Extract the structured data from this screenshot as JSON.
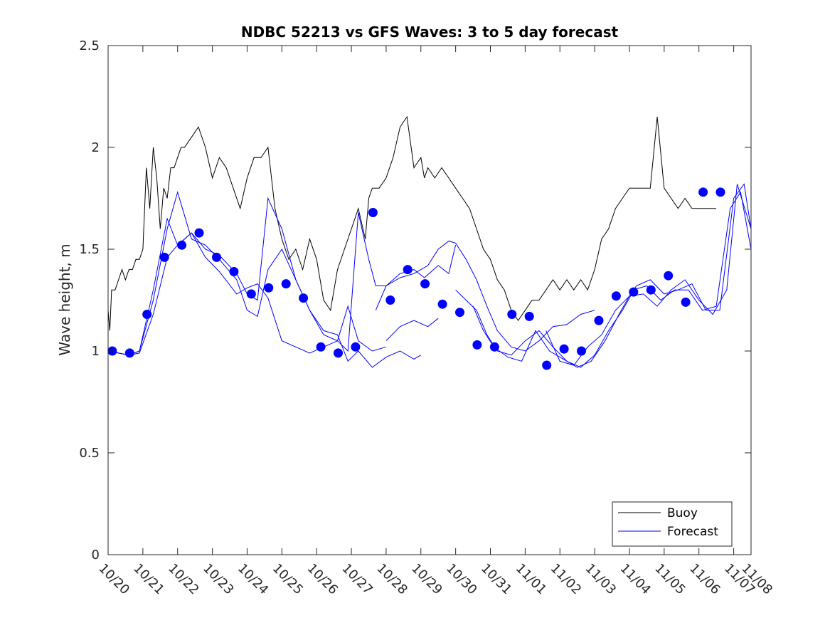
{
  "chart_data": {
    "type": "line",
    "title": "NDBC 52213 vs GFS Waves: 3 to 5 day forecast",
    "xlabel": "",
    "ylabel": "Wave height, m",
    "x_tick_labels": [
      "10/20",
      "10/21",
      "10/22",
      "10/23",
      "10/24",
      "10/25",
      "10/26",
      "10/27",
      "10/28",
      "10/29",
      "10/30",
      "10/31",
      "11/01",
      "11/02",
      "11/03",
      "11/04",
      "11/05",
      "11/06",
      "11/07",
      "11/08"
    ],
    "y_tick_labels": [
      "0",
      "0.5",
      "1",
      "1.5",
      "2",
      "2.5"
    ],
    "xlim": [
      0,
      18.5
    ],
    "ylim": [
      0,
      2.5
    ],
    "legend": {
      "location": "bottom-right",
      "entries": [
        "Buoy",
        "Forecast"
      ]
    },
    "colors": {
      "buoy": "#000000",
      "forecast": "#0000ff"
    },
    "series": [
      {
        "name": "Buoy",
        "x_days": [
          0,
          0.05,
          0.1,
          0.2,
          0.3,
          0.4,
          0.5,
          0.6,
          0.7,
          0.8,
          0.9,
          1.0,
          1.1,
          1.2,
          1.3,
          1.4,
          1.5,
          1.6,
          1.7,
          1.8,
          1.9,
          2.0,
          2.1,
          2.2,
          2.4,
          2.6,
          2.8,
          3.0,
          3.2,
          3.4,
          3.6,
          3.8,
          4.0,
          4.2,
          4.4,
          4.6,
          4.8,
          5.0,
          5.2,
          5.4,
          5.6,
          5.8,
          6.0,
          6.2,
          6.4,
          6.6,
          6.8,
          7.0,
          7.2,
          7.4,
          7.5,
          7.6,
          7.8,
          8.0,
          8.2,
          8.4,
          8.6,
          8.8,
          9.0,
          9.1,
          9.2,
          9.4,
          9.6,
          9.8,
          10.0,
          10.2,
          10.4,
          10.6,
          10.8,
          11.0,
          11.2,
          11.4,
          11.6,
          11.8,
          12.0,
          12.2,
          12.4,
          12.6,
          12.8,
          13.0,
          13.2,
          13.4,
          13.6,
          13.8,
          14.0,
          14.2,
          14.4,
          14.6,
          14.8,
          15.0,
          15.2,
          15.4,
          15.6,
          15.8,
          16.0,
          16.2,
          16.4,
          16.6,
          16.8,
          17.0,
          17.1,
          17.2,
          17.3,
          17.5
        ],
        "values": [
          1.2,
          1.1,
          1.3,
          1.3,
          1.35,
          1.4,
          1.35,
          1.4,
          1.4,
          1.45,
          1.45,
          1.5,
          1.9,
          1.7,
          2.0,
          1.85,
          1.6,
          1.8,
          1.75,
          1.9,
          1.9,
          1.95,
          2.0,
          2.0,
          2.05,
          2.1,
          2.0,
          1.85,
          1.95,
          1.9,
          1.8,
          1.7,
          1.85,
          1.95,
          1.95,
          2.0,
          1.7,
          1.55,
          1.45,
          1.5,
          1.4,
          1.55,
          1.45,
          1.25,
          1.2,
          1.4,
          1.5,
          1.6,
          1.7,
          1.55,
          1.75,
          1.8,
          1.8,
          1.85,
          1.95,
          2.1,
          2.15,
          1.9,
          1.95,
          1.85,
          1.9,
          1.85,
          1.9,
          1.85,
          1.8,
          1.75,
          1.7,
          1.6,
          1.5,
          1.45,
          1.35,
          1.3,
          1.2,
          1.15,
          1.2,
          1.25,
          1.25,
          1.3,
          1.35,
          1.3,
          1.35,
          1.3,
          1.35,
          1.3,
          1.4,
          1.55,
          1.6,
          1.7,
          1.75,
          1.8,
          1.8,
          1.8,
          1.8,
          2.15,
          1.8,
          1.75,
          1.7,
          1.75,
          1.7,
          1.7,
          1.7,
          1.7,
          1.7,
          1.7
        ]
      },
      {
        "name": "Forecast",
        "runs": [
          {
            "x_days": [
              0.0,
              0.6,
              0.9,
              1.3,
              1.7,
              2.0,
              2.4,
              2.8,
              3.2,
              3.7,
              4.0,
              4.3,
              4.6,
              5.0,
              5.4,
              5.8,
              6.2,
              6.6,
              6.9,
              7.2,
              7.6,
              8.0,
              8.4,
              8.8,
              9.0
            ],
            "values": [
              1.0,
              0.98,
              1.0,
              1.3,
              1.65,
              1.52,
              1.58,
              1.5,
              1.47,
              1.38,
              1.28,
              1.25,
              1.75,
              1.6,
              1.35,
              1.2,
              1.1,
              1.08,
              0.95,
              1.0,
              0.92,
              0.97,
              1.0,
              0.96,
              0.98
            ]
          },
          {
            "x_days": [
              0.0,
              0.6,
              0.9,
              1.3,
              1.7,
              2.0,
              2.4,
              2.8,
              3.2,
              3.7,
              4.0,
              4.3,
              4.6,
              5.0,
              5.4,
              5.8,
              6.2,
              6.6,
              6.9,
              7.2,
              7.6,
              8.0
            ],
            "values": [
              1.0,
              0.98,
              1.0,
              1.25,
              1.6,
              1.78,
              1.55,
              1.52,
              1.45,
              1.35,
              1.2,
              1.17,
              1.4,
              1.5,
              1.35,
              1.2,
              1.08,
              1.05,
              1.22,
              1.05,
              1.0,
              1.02
            ]
          },
          {
            "x_days": [
              0.0,
              0.6,
              0.9,
              1.3,
              1.7,
              2.0,
              2.4,
              2.8,
              3.2,
              3.7,
              4.0,
              4.3,
              4.6,
              5.0,
              5.4,
              5.8,
              6.2,
              6.6,
              6.9,
              7.2,
              7.5,
              7.7,
              8.0,
              8.4,
              8.8,
              9.1,
              9.5,
              9.8,
              10.0
            ],
            "values": [
              1.0,
              0.98,
              0.99,
              1.18,
              1.46,
              1.52,
              1.58,
              1.46,
              1.39,
              1.28,
              1.31,
              1.33,
              1.26,
              1.05,
              1.02,
              0.99,
              1.02,
              1.05,
              1.0,
              1.68,
              1.45,
              1.32,
              1.32,
              1.38,
              1.4,
              1.36,
              1.42,
              1.38,
              1.52
            ]
          },
          {
            "x_days": [
              7.7,
              8.0,
              8.4,
              8.8,
              9.2,
              9.5,
              9.8,
              10.0,
              10.3,
              10.6,
              10.9,
              11.2,
              11.6,
              12.0,
              12.4,
              12.8,
              13.2,
              13.6,
              14.0
            ],
            "values": [
              1.2,
              1.32,
              1.36,
              1.38,
              1.42,
              1.5,
              1.54,
              1.53,
              1.45,
              1.35,
              1.22,
              1.1,
              1.02,
              1.0,
              1.05,
              1.12,
              1.13,
              1.18,
              1.2
            ]
          },
          {
            "x_days": [
              8.0,
              8.4,
              8.8,
              9.2,
              9.5
            ],
            "values": [
              1.05,
              1.12,
              1.15,
              1.12,
              1.16
            ]
          },
          {
            "x_days": [
              10.0,
              10.3,
              10.6,
              10.9,
              11.2,
              11.6,
              12.0,
              12.4,
              12.8,
              13.2,
              13.6,
              14.0,
              14.4,
              14.8,
              15.2,
              15.6,
              16.0,
              16.4,
              16.8,
              17.2,
              17.6,
              18.0,
              18.3,
              18.5
            ],
            "values": [
              1.3,
              1.25,
              1.2,
              1.08,
              1.0,
              0.98,
              1.05,
              1.1,
              1.02,
              0.95,
              0.92,
              0.98,
              1.1,
              1.2,
              1.32,
              1.35,
              1.28,
              1.3,
              1.33,
              1.2,
              1.2,
              1.75,
              1.82,
              1.6
            ]
          },
          {
            "x_days": [
              10.5,
              10.8,
              11.1,
              11.5,
              11.9,
              12.3,
              12.7,
              13.1,
              13.5,
              13.9,
              14.3,
              14.7,
              15.1,
              15.5,
              15.9,
              16.3,
              16.7,
              17.1,
              17.5,
              17.9,
              18.2,
              18.5
            ],
            "values": [
              1.22,
              1.1,
              1.02,
              0.97,
              0.95,
              1.1,
              1.0,
              0.96,
              0.92,
              0.95,
              1.05,
              1.18,
              1.3,
              1.32,
              1.25,
              1.3,
              1.3,
              1.2,
              1.22,
              1.7,
              1.78,
              1.5
            ]
          },
          {
            "x_days": [
              12.6,
              13.0,
              13.4,
              13.8,
              14.2,
              14.6,
              15.0,
              15.4,
              15.8,
              16.2,
              16.6,
              17.0,
              17.4,
              17.8,
              18.1,
              18.5
            ],
            "values": [
              1.1,
              0.95,
              0.93,
              1.02,
              1.08,
              1.2,
              1.27,
              1.28,
              1.22,
              1.3,
              1.35,
              1.25,
              1.18,
              1.3,
              1.82,
              1.6
            ]
          }
        ],
        "markers": {
          "x_days": [
            0.12,
            0.62,
            1.12,
            1.62,
            2.12,
            2.62,
            3.12,
            3.62,
            4.12,
            4.62,
            5.12,
            5.62,
            6.12,
            6.62,
            7.12,
            7.62,
            8.12,
            8.62,
            9.12,
            9.62,
            10.12,
            10.62,
            11.12,
            11.62,
            12.12,
            12.62,
            13.12,
            13.62,
            14.12,
            14.62,
            15.12,
            15.62,
            16.12,
            16.62,
            17.12,
            17.62
          ],
          "values": [
            1.0,
            0.99,
            1.18,
            1.46,
            1.52,
            1.58,
            1.46,
            1.39,
            1.28,
            1.31,
            1.33,
            1.26,
            1.02,
            0.99,
            1.02,
            1.68,
            1.25,
            1.4,
            1.33,
            1.23,
            1.19,
            1.03,
            1.02,
            1.18,
            1.17,
            0.93,
            1.01,
            1.0,
            1.15,
            1.27,
            1.29,
            1.3,
            1.37,
            1.24,
            1.78,
            1.78
          ]
        }
      }
    ]
  }
}
